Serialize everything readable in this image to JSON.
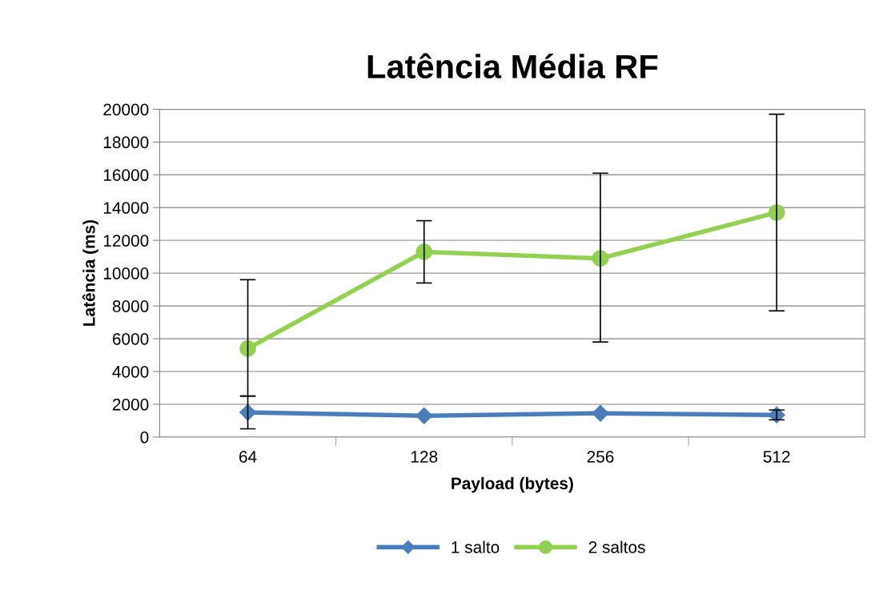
{
  "chart_data": {
    "type": "line",
    "title": "Latência Média RF",
    "xlabel": "Payload (bytes)",
    "ylabel": "Latência (ms)",
    "categories": [
      "64",
      "128",
      "256",
      "512"
    ],
    "series": [
      {
        "name": "1 salto",
        "color": "#4a7ebb",
        "marker": "diamond",
        "values": [
          1500,
          1300,
          1450,
          1350
        ],
        "errors": [
          [
            500,
            2500
          ],
          null,
          null,
          [
            1050,
            1650
          ]
        ]
      },
      {
        "name": "2 saltos",
        "color": "#92d050",
        "marker": "circle",
        "values": [
          5400,
          11300,
          10900,
          13700
        ],
        "errors": [
          [
            2500,
            9600
          ],
          [
            9400,
            13200
          ],
          [
            5800,
            16100
          ],
          [
            7700,
            19700
          ]
        ]
      }
    ],
    "ylim": [
      0,
      20000
    ],
    "yticks": [
      0,
      2000,
      4000,
      6000,
      8000,
      10000,
      12000,
      14000,
      16000,
      18000,
      20000
    ],
    "grid": "y",
    "legend": "bottom"
  }
}
